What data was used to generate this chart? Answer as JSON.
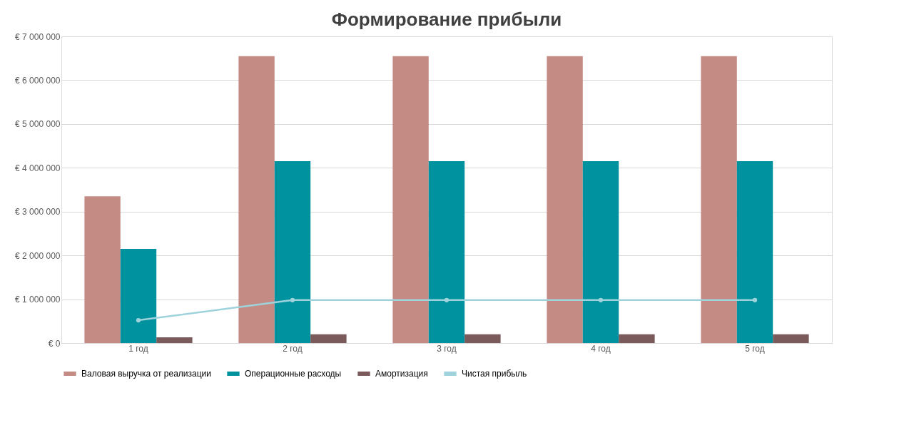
{
  "chart_data": {
    "type": "bar",
    "title": "Формирование прибыли",
    "categories": [
      "1 год",
      "2 год",
      "3 год",
      "4 год",
      "5 год"
    ],
    "series": [
      {
        "name": "Валовая выручка от реализации",
        "color": "#c48a84",
        "values": [
          3350000,
          6550000,
          6550000,
          6550000,
          6550000
        ]
      },
      {
        "name": "Операционные расходы",
        "color": "#00939f",
        "values": [
          2150000,
          4150000,
          4150000,
          4150000,
          4150000
        ]
      },
      {
        "name": "Амортизация",
        "color": "#7a5a5a",
        "values": [
          130000,
          200000,
          200000,
          200000,
          200000
        ]
      },
      {
        "name": "Чистая прибыль",
        "type": "line",
        "color": "#9fd3dc",
        "marker": "circle",
        "values": [
          520000,
          980000,
          980000,
          980000,
          980000
        ]
      }
    ],
    "ylim": [
      0,
      7000000
    ],
    "yticks": [
      {
        "value": 0,
        "label": "€ 0"
      },
      {
        "value": 1000000,
        "label": "€ 1 000 000"
      },
      {
        "value": 2000000,
        "label": "€ 2 000 000"
      },
      {
        "value": 3000000,
        "label": "€ 3 000 000"
      },
      {
        "value": 4000000,
        "label": "€ 4 000 000"
      },
      {
        "value": 5000000,
        "label": "€ 5 000 000"
      },
      {
        "value": 6000000,
        "label": "€ 6 000 000"
      },
      {
        "value": 7000000,
        "label": "€ 7 000 000"
      }
    ],
    "grid": "y",
    "legend": "bottom"
  }
}
